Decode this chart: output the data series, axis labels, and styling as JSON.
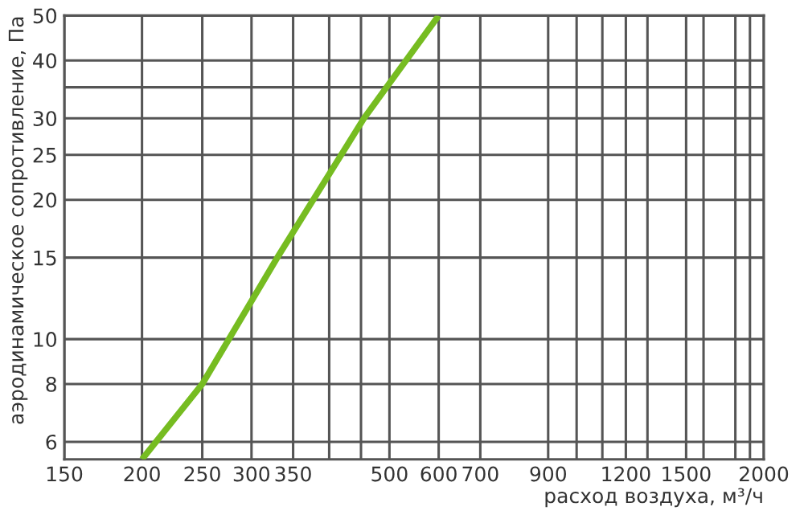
{
  "chart_data": {
    "type": "line",
    "xlabel": "расход воздуха, м³/ч",
    "ylabel": "аэродинамическое сопротивление, Па",
    "series": [
      {
        "color": "#76bc21",
        "x": [
          200,
          250,
          330,
          455,
          600
        ],
        "values": [
          5.5,
          8,
          15,
          30,
          50
        ]
      }
    ],
    "log": "xy",
    "xlim": [
      150,
      2000
    ],
    "ylim": [
      5.5,
      50
    ],
    "xticks": [
      150,
      200,
      250,
      300,
      350,
      {
        "value": 400,
        "label": null
      },
      {
        "value": 450,
        "label": null
      },
      500,
      600,
      700,
      900,
      {
        "value": 1000,
        "label": null
      },
      {
        "value": 1100,
        "label": null
      },
      1200,
      {
        "value": 1300,
        "label": null
      },
      1500,
      {
        "value": 1600,
        "label": null
      },
      {
        "value": 1800,
        "label": null
      },
      {
        "value": 1900,
        "label": null
      },
      2000
    ],
    "yticks": [
      6,
      8,
      10,
      15,
      20,
      25,
      30,
      {
        "value": 35,
        "label": null
      },
      40,
      50
    ],
    "grid": true,
    "marker": "none",
    "line_style": "solid"
  }
}
